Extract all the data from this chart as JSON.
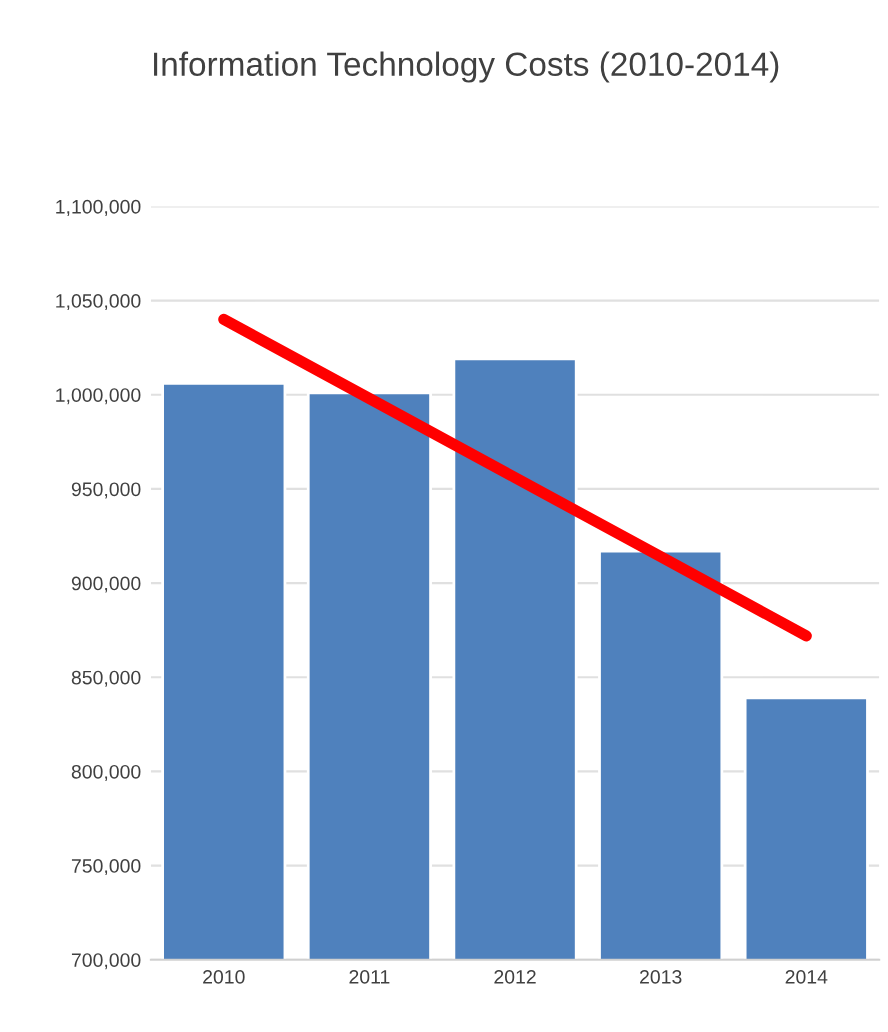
{
  "chart_data": {
    "type": "bar",
    "title": "Information Technology Costs (2010-2014)",
    "categories": [
      "2010",
      "2011",
      "2012",
      "2013",
      "2014"
    ],
    "series": [
      {
        "color": "#4f81bd",
        "values": [
          1006000,
          1001000,
          1019000,
          917000,
          839000
        ]
      },
      {
        "type": "line",
        "color": "#ff0000",
        "values": [
          1040000,
          998000,
          956000,
          914000,
          872000
        ]
      }
    ],
    "ylim": [
      700000,
      1100000
    ],
    "yticks": [
      {
        "value": 700000,
        "label": "700,000"
      },
      {
        "value": 750000,
        "label": "750,000"
      },
      {
        "value": 800000,
        "label": "800,000"
      },
      {
        "value": 850000,
        "label": "850,000"
      },
      {
        "value": 900000,
        "label": "900,000"
      },
      {
        "value": 950000,
        "label": "950,000"
      },
      {
        "value": 1000000,
        "label": "1,000,000"
      },
      {
        "value": 1050000,
        "label": "1,050,000"
      },
      {
        "value": 1100000,
        "label": "1,100,000"
      }
    ],
    "grid": "y",
    "line_style": "solid",
    "marker": "none"
  }
}
